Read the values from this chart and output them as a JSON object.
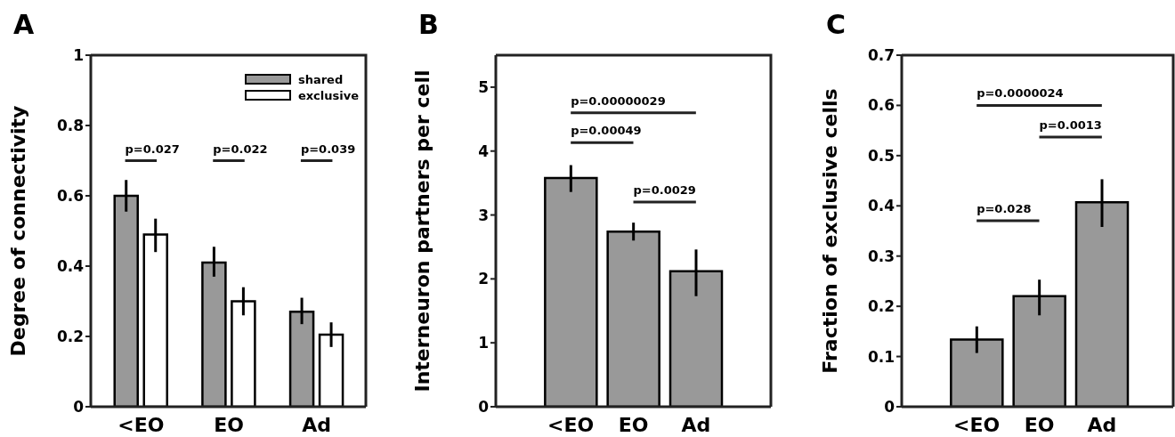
{
  "chart_data": [
    {
      "type": "bar",
      "title": "A",
      "categories": [
        "<EO",
        "EO",
        "Ad"
      ],
      "ylabel": "Degree of connectivity",
      "ylim": [
        0,
        1
      ],
      "yticks": [
        0,
        0.2,
        0.4,
        0.6,
        0.8,
        1
      ],
      "legend": "top right",
      "series": [
        {
          "name": "shared",
          "color": "#999999",
          "values": [
            0.6,
            0.41,
            0.27
          ],
          "errors": [
            [
              0.555,
              0.645
            ],
            [
              0.37,
              0.455
            ],
            [
              0.235,
              0.31
            ]
          ]
        },
        {
          "name": "exclusive",
          "color": "#ffffff",
          "values": [
            0.49,
            0.3,
            0.205
          ],
          "errors": [
            [
              0.44,
              0.535
            ],
            [
              0.26,
              0.34
            ],
            [
              0.17,
              0.24
            ]
          ]
        }
      ],
      "annotations": [
        "p=0.027",
        "p=0.022",
        "p=0.039"
      ]
    },
    {
      "type": "bar",
      "title": "B",
      "categories": [
        "<EO",
        "EO",
        "Ad"
      ],
      "ylabel": "Interneuron partners per cell",
      "ylim": [
        0,
        5.5
      ],
      "yticks": [
        0,
        1,
        2,
        3,
        4,
        5
      ],
      "series": [
        {
          "color": "#999999",
          "values": [
            3.58,
            2.74,
            2.12
          ],
          "errors": [
            [
              3.36,
              3.78
            ],
            [
              2.6,
              2.88
            ],
            [
              1.73,
              2.46
            ]
          ]
        }
      ],
      "annotations": [
        "p=0.00000029",
        "p=0.00049",
        "p=0.0029"
      ]
    },
    {
      "type": "bar",
      "title": "C",
      "categories": [
        "<EO",
        "EO",
        "Ad"
      ],
      "ylabel": "Fraction of exclusive cells",
      "ylim": [
        0,
        0.7
      ],
      "yticks": [
        0,
        0.1,
        0.2,
        0.3,
        0.4,
        0.5,
        0.6,
        0.7
      ],
      "series": [
        {
          "color": "#999999",
          "values": [
            0.134,
            0.22,
            0.407
          ],
          "errors": [
            [
              0.107,
              0.16
            ],
            [
              0.182,
              0.253
            ],
            [
              0.358,
              0.453
            ]
          ]
        }
      ],
      "annotations": [
        "p=0.0000024",
        "p=0.0013",
        "p=0.028"
      ]
    }
  ]
}
